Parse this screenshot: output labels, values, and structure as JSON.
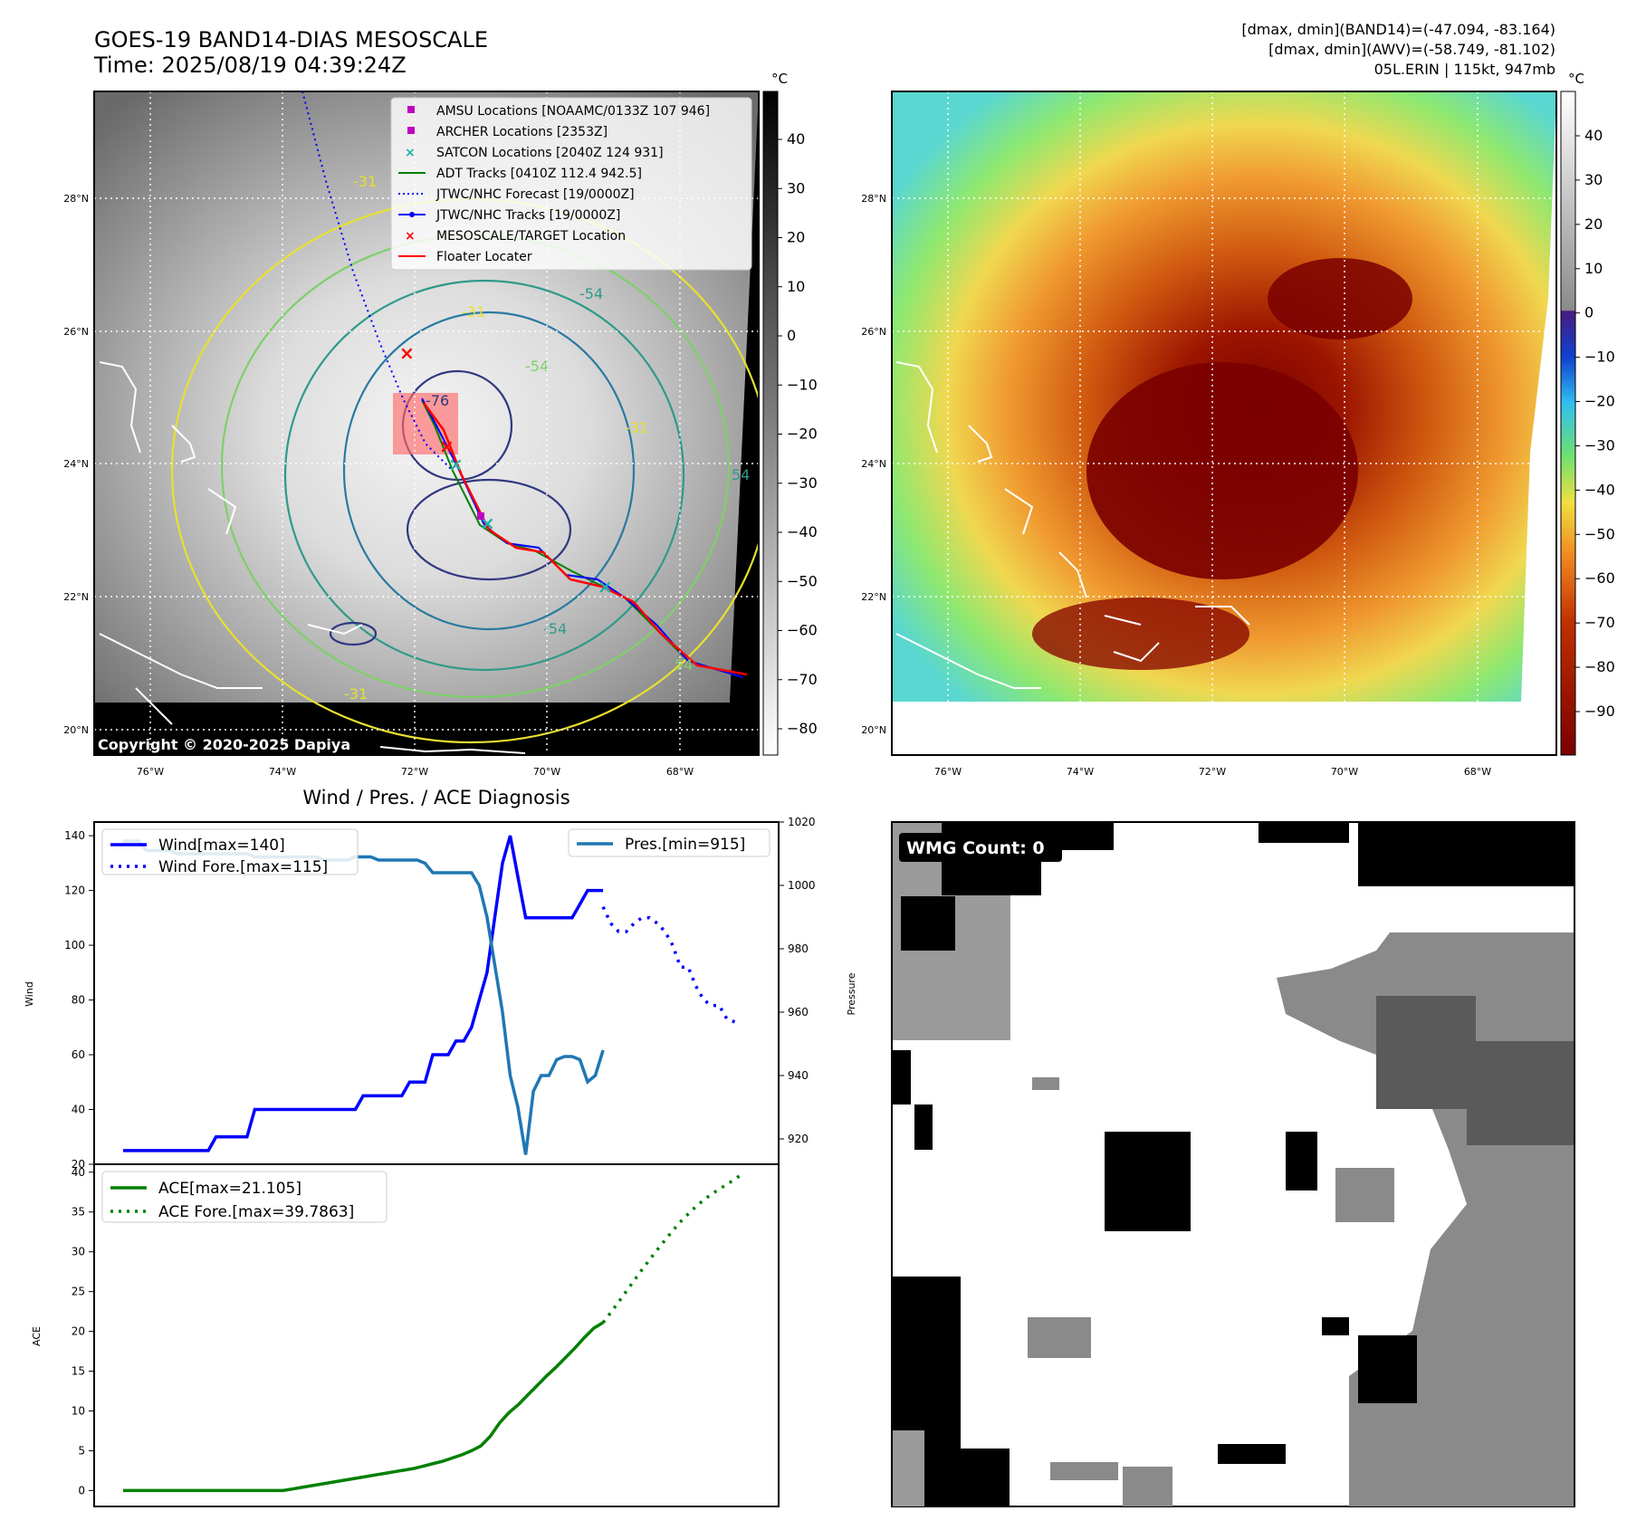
{
  "header": {
    "title_line1": "GOES-19 BAND14-DIAS MESOSCALE",
    "title_line2": "Time: 2025/08/19 04:39:24Z",
    "info_line1": "[dmax, dmin](BAND14)=(-47.094, -83.164)",
    "info_line2": "[dmax, dmin](AWV)=(-58.749, -81.102)",
    "info_line3": "05L.ERIN | 115kt, 947mb"
  },
  "maps": {
    "lon_ticks": [
      "76°W",
      "74°W",
      "72°W",
      "70°W",
      "68°W"
    ],
    "lat_ticks": [
      "28°N",
      "26°N",
      "24°N",
      "22°N",
      "20°N"
    ],
    "copyright": "Copyright © 2020-2025 Dapiya",
    "contour_labels": [
      "-31",
      "-31",
      "-54",
      "-76",
      "-54",
      "-31",
      "54",
      "-54",
      "54",
      "-31"
    ],
    "legend": [
      {
        "label": "AMSU Locations [NOAAMC/0133Z 107 946]",
        "marker": "square",
        "color": "#c000c0"
      },
      {
        "label": "ARCHER Locations [2353Z]",
        "marker": "square",
        "color": "#c000c0"
      },
      {
        "label": "SATCON Locations [2040Z 124 931]",
        "marker": "x",
        "color": "#20b2aa"
      },
      {
        "label": "ADT Tracks [0410Z 112.4 942.5]",
        "marker": "line",
        "color": "#008000"
      },
      {
        "label": "JTWC/NHC Forecast [19/0000Z]",
        "marker": "dotted",
        "color": "#0000ff"
      },
      {
        "label": "JTWC/NHC Tracks [19/0000Z]",
        "marker": "line-dot",
        "color": "#0000ff"
      },
      {
        "label": "MESOSCALE/TARGET Location",
        "marker": "x",
        "color": "#ff0000"
      },
      {
        "label": "Floater Locater",
        "marker": "line",
        "color": "#ff0000"
      }
    ],
    "gray_colorbar": {
      "unit": "°C",
      "ticks": [
        "40",
        "30",
        "20",
        "10",
        "0",
        "−10",
        "−20",
        "−30",
        "−40",
        "−50",
        "−60",
        "−70",
        "−80"
      ]
    },
    "color_colorbar": {
      "unit": "°C",
      "ticks": [
        "40",
        "30",
        "20",
        "10",
        "0",
        "−10",
        "−20",
        "−30",
        "−40",
        "−50",
        "−60",
        "−70",
        "−80",
        "−90"
      ]
    }
  },
  "wmg": {
    "label": "WMG Count: 0"
  },
  "colors": {
    "wind": "#0000ff",
    "pressure": "#1f77b4",
    "ace": "#008000",
    "ir_cold": "#7a0000",
    "ir_mid": "#e07010",
    "ir_warm": "#6ee070"
  },
  "chart_data": [
    {
      "type": "line",
      "title": "Wind / Pres. / ACE Diagnosis",
      "ylabel": "Wind",
      "y2label": "Pressure",
      "ylim": [
        20,
        145
      ],
      "y2lim": [
        912,
        1020
      ],
      "yticks": [
        "140",
        "120",
        "100",
        "80",
        "60",
        "40",
        "20"
      ],
      "y2ticks": [
        "1020",
        "1000",
        "980",
        "960",
        "940",
        "920"
      ],
      "series": [
        {
          "name": "Wind[max=140]",
          "axis": "left",
          "style": "solid",
          "values": [
            25,
            25,
            25,
            25,
            25,
            25,
            25,
            25,
            25,
            25,
            25,
            25,
            30,
            30,
            30,
            30,
            30,
            40,
            40,
            40,
            40,
            40,
            40,
            40,
            40,
            40,
            40,
            40,
            40,
            40,
            40,
            45,
            45,
            45,
            45,
            45,
            45,
            50,
            50,
            50,
            60,
            60,
            60,
            65,
            65,
            70,
            80,
            90,
            110,
            130,
            140,
            125,
            110,
            110,
            110,
            110,
            110,
            110,
            110,
            115,
            120,
            120,
            120
          ]
        },
        {
          "name": "Wind Fore.[max=115]",
          "axis": "left",
          "style": "dotted",
          "values": [
            114,
            108,
            105,
            105,
            108,
            110,
            110,
            108,
            105,
            100,
            92,
            92,
            85,
            80,
            78,
            78,
            73,
            72
          ]
        },
        {
          "name": "Pres.[min=915]",
          "axis": "right",
          "style": "solid",
          "values": [
            1014,
            1014,
            1014,
            1011,
            1011,
            1011,
            1011,
            1010,
            1010,
            1010,
            1010,
            1010,
            1010,
            1010,
            1010,
            1010,
            1010,
            1009,
            1009,
            1009,
            1009,
            1009,
            1009,
            1009,
            1009,
            1009,
            1008,
            1008,
            1008,
            1008,
            1009,
            1009,
            1009,
            1008,
            1008,
            1008,
            1008,
            1008,
            1008,
            1007,
            1004,
            1004,
            1004,
            1004,
            1004,
            1004,
            1000,
            990,
            975,
            960,
            940,
            930,
            915,
            935,
            940,
            940,
            945,
            946,
            946,
            945,
            938,
            940,
            948
          ]
        }
      ]
    },
    {
      "type": "line",
      "ylabel": "ACE",
      "ylim": [
        -2,
        41
      ],
      "yticks": [
        "40",
        "35",
        "30",
        "25",
        "20",
        "15",
        "10",
        "5",
        "0"
      ],
      "series": [
        {
          "name": "ACE[max=21.105]",
          "style": "solid",
          "values": [
            0,
            0,
            0,
            0,
            0,
            0,
            0,
            0,
            0,
            0,
            0,
            0,
            0,
            0,
            0,
            0,
            0,
            0,
            0.2,
            0.4,
            0.6,
            0.8,
            1.0,
            1.2,
            1.4,
            1.6,
            1.8,
            2.0,
            2.2,
            2.4,
            2.6,
            2.8,
            3.1,
            3.4,
            3.7,
            4.1,
            4.5,
            5.0,
            5.6,
            6.8,
            8.5,
            9.8,
            10.8,
            12.0,
            13.2,
            14.4,
            15.5,
            16.7,
            17.9,
            19.2,
            20.4,
            21.105
          ]
        },
        {
          "name": "ACE Fore.[max=39.7863]",
          "style": "dotted",
          "values": [
            21.105,
            23.2,
            25.4,
            27.6,
            29.7,
            31.7,
            33.6,
            35.2,
            36.6,
            37.7,
            38.7,
            39.7863
          ]
        }
      ]
    }
  ]
}
